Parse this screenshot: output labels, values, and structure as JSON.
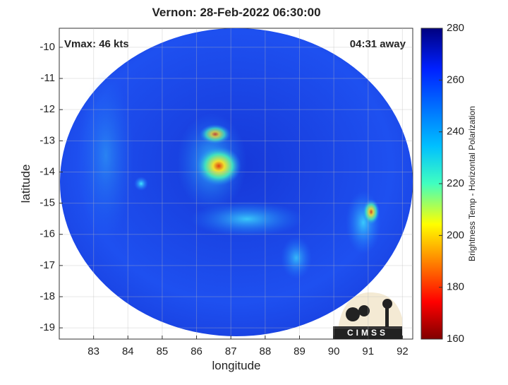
{
  "title": "Vernon: 28-Feb-2022 06:30:00",
  "annotations": {
    "vmax": "Vmax: 46 kts",
    "away": "04:31 away"
  },
  "x_axis": {
    "label": "longitude",
    "lim": [
      82,
      92.3
    ],
    "ticks": [
      83,
      84,
      85,
      86,
      87,
      88,
      89,
      90,
      91,
      92
    ]
  },
  "y_axis": {
    "label": "latitude",
    "lim": [
      -19.36,
      -9.39
    ],
    "ticks": [
      -19,
      -18,
      -17,
      -16,
      -15,
      -14,
      -13,
      -12,
      -11,
      -10
    ]
  },
  "colorbar": {
    "label": "Brightness Temp - Horizontal Polarization",
    "lim": [
      160,
      280
    ],
    "ticks": [
      160,
      180,
      200,
      220,
      240,
      260,
      280
    ]
  },
  "logo": "CIMSS"
}
